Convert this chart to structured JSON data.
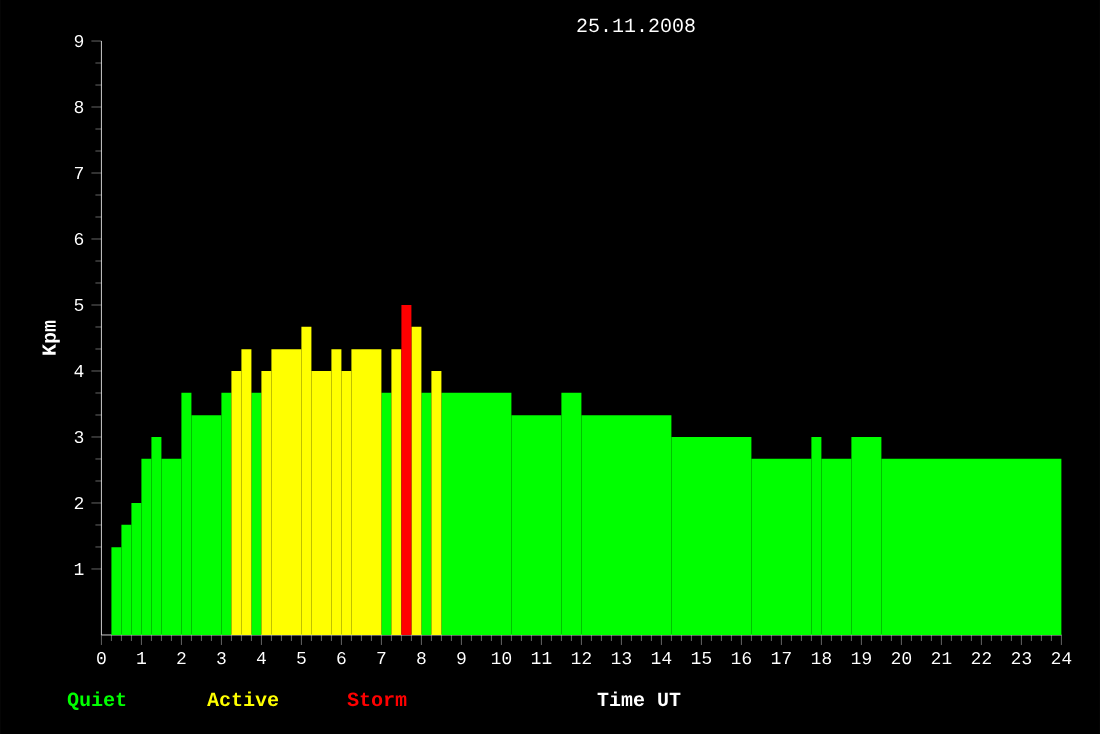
{
  "chart_data": {
    "type": "histogram",
    "title": "25.11.2008",
    "xlabel": "Time UT",
    "ylabel": "Kpm",
    "xlim": [
      0,
      24
    ],
    "xticks": [
      0,
      1,
      2,
      3,
      4,
      5,
      6,
      7,
      8,
      9,
      10,
      11,
      12,
      13,
      14,
      15,
      16,
      17,
      18,
      19,
      20,
      21,
      22,
      23,
      24
    ],
    "ylim": [
      0,
      9
    ],
    "yticks": [
      1,
      2,
      3,
      4,
      5,
      6,
      7,
      8,
      9
    ],
    "legend": "bottom",
    "bins": [
      0.25,
      0.5,
      0.75,
      1,
      1.25,
      1.5,
      2,
      2.25,
      3,
      3.25,
      3.5,
      3.75,
      4,
      4.25,
      5,
      5.25,
      5.75,
      6,
      6.25,
      7,
      7.25,
      7.5,
      7.75,
      8,
      8.25,
      8.5,
      10.25,
      11.5,
      12,
      14.25,
      16.25,
      17.75,
      18,
      18.75,
      19.5,
      24
    ],
    "series": [
      {
        "name": "Quiet",
        "color": "#00ff00",
        "values": [
          1.33,
          1.67,
          2,
          2.67,
          3,
          2.67,
          3.67,
          3.33,
          3.67,
          null,
          null,
          3.67,
          null,
          null,
          null,
          null,
          null,
          null,
          null,
          3.67,
          null,
          null,
          null,
          3.67,
          null,
          3.67,
          3.33,
          3.67,
          3.33,
          3,
          2.67,
          3,
          2.67,
          3,
          2.67
        ]
      },
      {
        "name": "Active",
        "color": "#ffff00",
        "values": [
          null,
          null,
          null,
          null,
          null,
          null,
          null,
          null,
          null,
          4,
          4.33,
          null,
          4,
          4.33,
          4.67,
          4,
          4.33,
          4,
          4.33,
          null,
          4.33,
          null,
          4.67,
          null,
          4,
          null,
          null,
          null,
          null,
          null,
          null,
          null,
          null,
          null,
          null
        ]
      },
      {
        "name": "Storm",
        "color": "#ff0000",
        "values": [
          null,
          null,
          null,
          null,
          null,
          null,
          null,
          null,
          null,
          null,
          null,
          null,
          null,
          null,
          null,
          null,
          null,
          null,
          null,
          null,
          null,
          5,
          null,
          null,
          null,
          null,
          null,
          null,
          null,
          null,
          null,
          null,
          null,
          null,
          null
        ]
      }
    ]
  }
}
